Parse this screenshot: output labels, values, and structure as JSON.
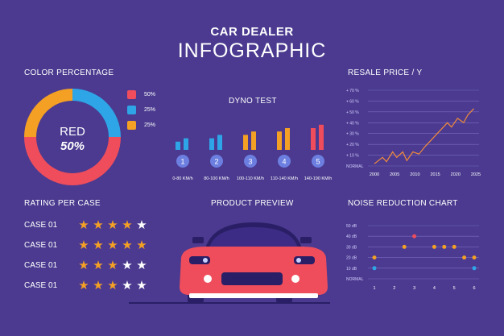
{
  "header": {
    "line1": "CAR DEALER",
    "line2": "INFOGRAPHIC"
  },
  "colors": {
    "background": "#4b3a8f",
    "red": "#ef4d5c",
    "blue": "#2ea5e6",
    "orange": "#f4a024",
    "line": "#f08a3c",
    "grid": "#7b6cc0"
  },
  "color_percentage": {
    "title": "COLOR PERCENTAGE",
    "center_label": "RED",
    "center_value": "50%",
    "legend": [
      {
        "color": "#ef4d5c",
        "value": "50%"
      },
      {
        "color": "#2ea5e6",
        "value": "25%"
      },
      {
        "color": "#f4a024",
        "value": "25%"
      }
    ]
  },
  "dyno": {
    "title": "DYNO TEST",
    "groups": [
      {
        "num": "1",
        "label": "0-80 KM/h",
        "color": "#2ea5e6"
      },
      {
        "num": "2",
        "label": "80-100 KM/h",
        "color": "#2ea5e6"
      },
      {
        "num": "3",
        "label": "100-110 KM/h",
        "color": "#f4a024"
      },
      {
        "num": "4",
        "label": "110-140 KM/h",
        "color": "#f4a024"
      },
      {
        "num": "5",
        "label": "140-190 KM/h",
        "color": "#ef4d5c"
      }
    ]
  },
  "rating": {
    "title": "RATING PER CASE",
    "cases": [
      {
        "label": "CASE 01",
        "filled": 4
      },
      {
        "label": "CASE 01",
        "filled": 5
      },
      {
        "label": "CASE 01",
        "filled": 3
      },
      {
        "label": "CASE 01",
        "filled": 3
      }
    ]
  },
  "product": {
    "title": "PRODUCT PREVIEW"
  },
  "chart_data": [
    {
      "type": "pie",
      "title": "COLOR PERCENTAGE",
      "values": [
        50,
        25,
        25
      ],
      "colors": [
        "#ef4d5c",
        "#2ea5e6",
        "#f4a024"
      ]
    },
    {
      "type": "bar",
      "title": "DYNO TEST",
      "categories": [
        "0-80 KM/h",
        "80-100 KM/h",
        "100-110 KM/h",
        "110-140 KM/h",
        "140-190 KM/h"
      ],
      "series": [
        {
          "values": [
            1,
            2,
            3,
            4,
            5
          ]
        },
        {
          "values": [
            2,
            3,
            4,
            5,
            6
          ]
        }
      ]
    },
    {
      "type": "line",
      "title": "RESALE PRICE / Y",
      "y_ticks": [
        "+ 70 %",
        "+ 60 %",
        "+ 50 %",
        "+ 40 %",
        "+ 30 %",
        "+ 20 %",
        "+ 10 %",
        "NORMAL"
      ],
      "x_ticks": [
        "2000",
        "2005",
        "2010",
        "2015",
        "2020",
        "2025"
      ],
      "xlim": [
        2000,
        2025
      ],
      "ylim": [
        0,
        70
      ],
      "x": [
        2000,
        2002,
        2003,
        2004.5,
        2005.5,
        2007,
        2008,
        2009.5,
        2011,
        2012.5,
        2014,
        2015.5,
        2016.5,
        2018,
        2019,
        2020.5,
        2022,
        2023,
        2024.5
      ],
      "y": [
        2,
        8,
        4,
        13,
        8,
        13,
        5,
        13,
        11,
        18,
        24,
        30,
        34,
        40,
        36,
        44,
        40,
        47,
        53
      ]
    },
    {
      "type": "scatter",
      "title": "NOISE REDUCTION CHART",
      "y_ticks": [
        "50 dB",
        "40 dB",
        "30 dB",
        "20 dB",
        "10 dB",
        "NORMAL"
      ],
      "x_ticks": [
        "1",
        "2",
        "3",
        "4",
        "5",
        "6"
      ],
      "xlim": [
        0.8,
        6.2
      ],
      "ylim": [
        0,
        50
      ],
      "series": [
        {
          "color": "#ef4d5c",
          "x": [
            3
          ],
          "y": [
            40
          ]
        },
        {
          "color": "#f4a024",
          "x": [
            2.5,
            4,
            4.5,
            5
          ],
          "y": [
            30,
            30,
            30,
            30
          ]
        },
        {
          "color": "#f4a024",
          "x": [
            1,
            5.5,
            6
          ],
          "y": [
            20,
            20,
            20
          ]
        },
        {
          "color": "#2ea5e6",
          "x": [
            1,
            6
          ],
          "y": [
            10,
            10
          ]
        }
      ]
    }
  ],
  "resale": {
    "title": "RESALE PRICE / Y"
  },
  "noise": {
    "title": "NOISE REDUCTION CHART"
  }
}
